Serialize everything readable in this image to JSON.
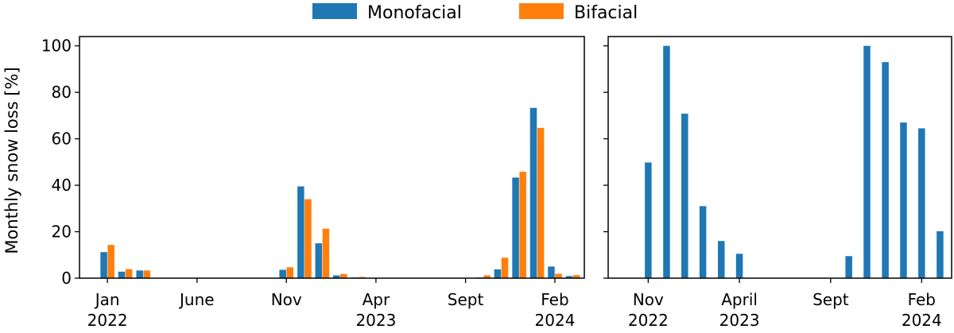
{
  "legend": {
    "entries": [
      {
        "name": "Monofacial",
        "color": "#1f77b4"
      },
      {
        "name": "Bifacial",
        "color": "#ff7f0e"
      }
    ]
  },
  "chart_data": [
    {
      "type": "bar",
      "panel": "left",
      "title": "",
      "xlabel": "",
      "ylabel": "Monthly snow loss [%]",
      "ylim": [
        0,
        104
      ],
      "yticks": [
        0,
        20,
        40,
        60,
        80,
        100
      ],
      "xlim": [
        2021.87,
        2024.22
      ],
      "xticks": [
        {
          "x": 2022.0,
          "label": "Jan",
          "label2": "2022"
        },
        {
          "x": 2022.417,
          "label": "June",
          "label2": ""
        },
        {
          "x": 2022.833,
          "label": "Nov",
          "label2": ""
        },
        {
          "x": 2023.25,
          "label": "Apr",
          "label2": "2023"
        },
        {
          "x": 2023.667,
          "label": "Sept",
          "label2": ""
        },
        {
          "x": 2024.083,
          "label": "Feb",
          "label2": "2024"
        }
      ],
      "x": [
        2022.0,
        2022.083,
        2022.167,
        2022.833,
        2022.917,
        2023.0,
        2023.083,
        2023.167,
        2023.75,
        2023.833,
        2023.917,
        2024.0,
        2024.083,
        2024.167
      ],
      "series": [
        {
          "name": "Monofacial",
          "color": "#1f77b4",
          "values": [
            11.2,
            2.8,
            3.3,
            3.6,
            39.5,
            15.0,
            1.2,
            0.3,
            0.3,
            3.8,
            43.3,
            73.3,
            5.0,
            0.9
          ]
        },
        {
          "name": "Bifacial",
          "color": "#ff7f0e",
          "values": [
            14.3,
            3.9,
            3.3,
            4.7,
            34.0,
            21.3,
            1.8,
            0.5,
            1.2,
            8.8,
            45.8,
            64.7,
            1.9,
            1.3
          ]
        }
      ]
    },
    {
      "type": "bar",
      "panel": "right",
      "title": "",
      "xlabel": "",
      "ylabel": "",
      "ylim": [
        0,
        104
      ],
      "yticks": [
        0,
        20,
        40,
        60,
        80,
        100
      ],
      "xlim": [
        2022.65,
        2024.22
      ],
      "xticks": [
        {
          "x": 2022.833,
          "label": "Nov",
          "label2": "2022"
        },
        {
          "x": 2023.25,
          "label": "April",
          "label2": "2023"
        },
        {
          "x": 2023.667,
          "label": "Sept",
          "label2": ""
        },
        {
          "x": 2024.083,
          "label": "Feb",
          "label2": "2024"
        }
      ],
      "x": [
        2022.833,
        2022.917,
        2023.0,
        2023.083,
        2023.167,
        2023.25,
        2023.75,
        2023.833,
        2023.917,
        2024.0,
        2024.083,
        2024.167
      ],
      "series": [
        {
          "name": "Monofacial",
          "color": "#1f77b4",
          "values": [
            49.8,
            100.0,
            70.8,
            31.0,
            16.0,
            10.5,
            9.5,
            100.0,
            93.0,
            67.0,
            64.5,
            20.2
          ]
        }
      ]
    }
  ]
}
